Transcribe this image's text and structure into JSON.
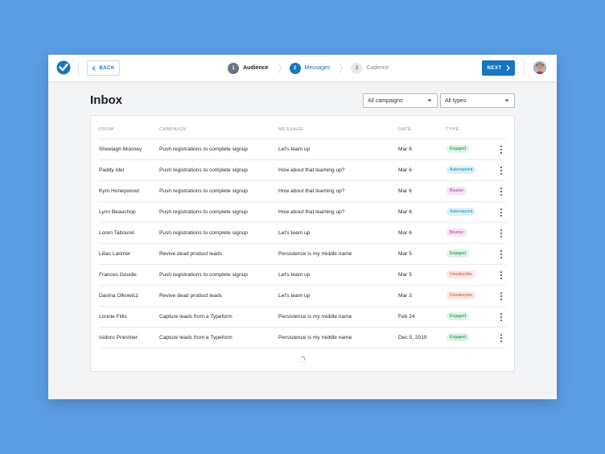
{
  "header": {
    "back_label": "BACK",
    "next_label": "NEXT",
    "steps": [
      {
        "number": "1",
        "label": "Audience",
        "state": "done"
      },
      {
        "number": "2",
        "label": "Messages",
        "state": "active"
      },
      {
        "number": "3",
        "label": "Cadence",
        "state": "todo"
      }
    ]
  },
  "page": {
    "title": "Inbox",
    "filters": {
      "campaign": "All campaigns",
      "type": "All types"
    }
  },
  "table": {
    "columns": [
      "FROM",
      "CAMPAIGN",
      "MESSAGE",
      "DATE",
      "TYPE"
    ],
    "rows": [
      {
        "from": "Sheelagh Mooney",
        "campaign": "Push registrations to complete signup",
        "message": "Let's team up",
        "date": "Mar 6",
        "type": "Engaged"
      },
      {
        "from": "Paddy Idel",
        "campaign": "Push registrations to complete signup",
        "message": "How about that teaming up?",
        "date": "Mar 6",
        "type": "Autorespond"
      },
      {
        "from": "Kym Honeywood",
        "campaign": "Push registrations to complete signup",
        "message": "How about that teaming up?",
        "date": "Mar 6",
        "type": "Bounce"
      },
      {
        "from": "Lynn Beauchop",
        "campaign": "Push registrations to complete signup",
        "message": "How about that teaming up?",
        "date": "Mar 6",
        "type": "Autorespond"
      },
      {
        "from": "Loren Tabourel",
        "campaign": "Push registrations to complete signup",
        "message": "Let's team up",
        "date": "Mar 6",
        "type": "Bounce"
      },
      {
        "from": "Lilias Larimer",
        "campaign": "Revive dead product leads",
        "message": "Persistence is my middle name",
        "date": "Mar 5",
        "type": "Engaged"
      },
      {
        "from": "Frances Goudie",
        "campaign": "Push registrations to complete signup",
        "message": "Let's team up",
        "date": "Mar 5",
        "type": "Unsubscribe"
      },
      {
        "from": "Davina Olkowicz",
        "campaign": "Revive dead product leads",
        "message": "Let's team up",
        "date": "Mar 3",
        "type": "Unsubscribe"
      },
      {
        "from": "Lonnie Fillis",
        "campaign": "Capture leads from a Typeform",
        "message": "Persistence is my middle name",
        "date": "Feb 24",
        "type": "Engaged"
      },
      {
        "from": "Isidoro Priestner",
        "campaign": "Capture leads from a Typeform",
        "message": "Persistence is my middle name",
        "date": "Dec 5, 2019",
        "type": "Engaged"
      }
    ]
  },
  "colors": {
    "accent": "#1775c4",
    "background": "#5b9de3",
    "engaged": "#1f8a4c",
    "autorespond": "#2180a3",
    "bounce": "#a8339a",
    "unsubscribe": "#cc4b34"
  },
  "icons": {
    "logo": "checkmark-logo-icon",
    "back": "chevron-left-icon",
    "next": "chevron-right-icon",
    "row_menu": "more-vertical-icon",
    "loading": "spinner-icon"
  }
}
